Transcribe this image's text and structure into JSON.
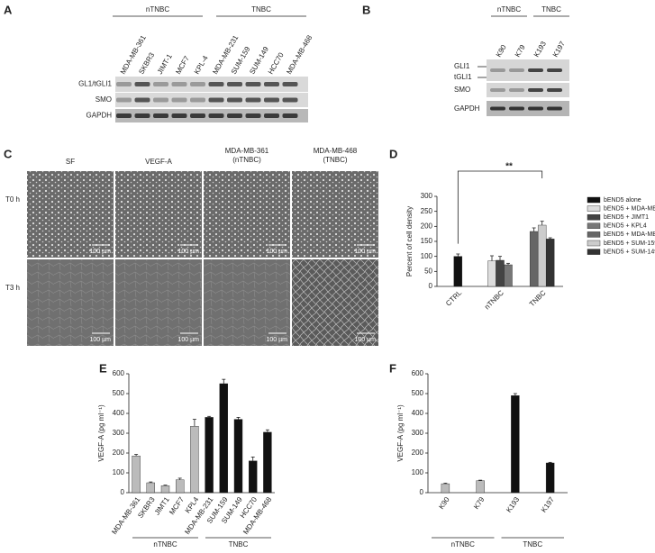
{
  "panel_labels": [
    "A",
    "B",
    "C",
    "D",
    "E",
    "F"
  ],
  "blot_a": {
    "groups": [
      "nTNBC",
      "TNBC"
    ],
    "lanes": [
      "MDA-MB-361",
      "SKBR3",
      "JIMT-1",
      "MCF7",
      "KPL-4",
      "MDA-MB-231",
      "SUM-159",
      "SUM-149",
      "HCC70",
      "MDA-MB-468"
    ],
    "rows": [
      "GL1/tGLI1",
      "SMO",
      "GAPDH"
    ]
  },
  "blot_b": {
    "groups": [
      "nTNBC",
      "TNBC"
    ],
    "lanes": [
      "K90",
      "K79",
      "K193",
      "K197"
    ],
    "rows": [
      "GLI1",
      "tGLI1",
      "SMO",
      "GAPDH"
    ]
  },
  "micrographs": {
    "columns": [
      [
        "SF"
      ],
      [
        "VEGF-A"
      ],
      [
        "MDA-MB-361",
        "(nTNBC)"
      ],
      [
        "MDA-MB-468",
        "(TNBC)"
      ]
    ],
    "rows": [
      "T0 h",
      "T3 h"
    ],
    "scale_bar": "100 µm"
  },
  "chart_data": [
    {
      "type": "bar",
      "ylabel": "Percent of cell density",
      "categories": [
        "CTRL",
        "nTNBC",
        "TNBC"
      ],
      "series": [
        {
          "name": "bEND5 alone",
          "color": "#111111",
          "values": [
            100,
            null,
            null
          ],
          "errors": [
            8,
            null,
            null
          ]
        },
        {
          "name": "bEND5 + MDA-MB-361",
          "color": "#dddddd",
          "values": [
            null,
            85,
            null
          ],
          "errors": [
            null,
            17,
            null
          ]
        },
        {
          "name": "bEND5 + JIMT1",
          "color": "#444444",
          "values": [
            null,
            87,
            null
          ],
          "errors": [
            null,
            13,
            null
          ]
        },
        {
          "name": "bEND5 + KPL4",
          "color": "#777777",
          "values": [
            null,
            72,
            null
          ],
          "errors": [
            null,
            5,
            null
          ]
        },
        {
          "name": "bEND5 + MDA-MB-468",
          "color": "#666666",
          "values": [
            null,
            null,
            183
          ],
          "errors": [
            null,
            null,
            12
          ]
        },
        {
          "name": "bEND5 + SUM-159",
          "color": "#cccccc",
          "values": [
            null,
            null,
            204
          ],
          "errors": [
            null,
            null,
            13
          ]
        },
        {
          "name": "bEND5 + SUM-149",
          "color": "#333333",
          "values": [
            null,
            null,
            158
          ],
          "errors": [
            null,
            null,
            4
          ]
        }
      ],
      "ylim": [
        0,
        300
      ],
      "yticks": [
        0,
        50,
        100,
        150,
        200,
        250,
        300
      ],
      "annotation": "**",
      "legend": "right"
    },
    {
      "type": "bar",
      "ylabel": "VEGF-A (pg ml⁻¹)",
      "categories": [
        "MDA-MB-361",
        "SKBR3",
        "JIMT1",
        "MCF7",
        "KPL4",
        "MDA-MB-231",
        "SUM-159",
        "SUM-149",
        "HCC70",
        "MDA-MB-468"
      ],
      "values": [
        185,
        50,
        35,
        65,
        335,
        380,
        550,
        370,
        160,
        305
      ],
      "errors": [
        8,
        4,
        3,
        8,
        35,
        5,
        22,
        10,
        20,
        12
      ],
      "colors": [
        "#bbbbbb",
        "#bbbbbb",
        "#bbbbbb",
        "#bbbbbb",
        "#bbbbbb",
        "#111111",
        "#111111",
        "#111111",
        "#111111",
        "#111111"
      ],
      "groups": [
        "nTNBC",
        "TNBC"
      ],
      "ylim": [
        0,
        600
      ],
      "yticks": [
        0,
        100,
        200,
        300,
        400,
        500,
        600
      ]
    },
    {
      "type": "bar",
      "ylabel": "VEGF-A (pg ml⁻¹)",
      "categories": [
        "K90",
        "K79",
        "K193",
        "K197"
      ],
      "values": [
        45,
        60,
        490,
        150
      ],
      "errors": [
        3,
        3,
        10,
        3
      ],
      "colors": [
        "#bbbbbb",
        "#bbbbbb",
        "#111111",
        "#111111"
      ],
      "groups": [
        "nTNBC",
        "TNBC"
      ],
      "ylim": [
        0,
        600
      ],
      "yticks": [
        0,
        100,
        200,
        300,
        400,
        500,
        600
      ]
    }
  ]
}
